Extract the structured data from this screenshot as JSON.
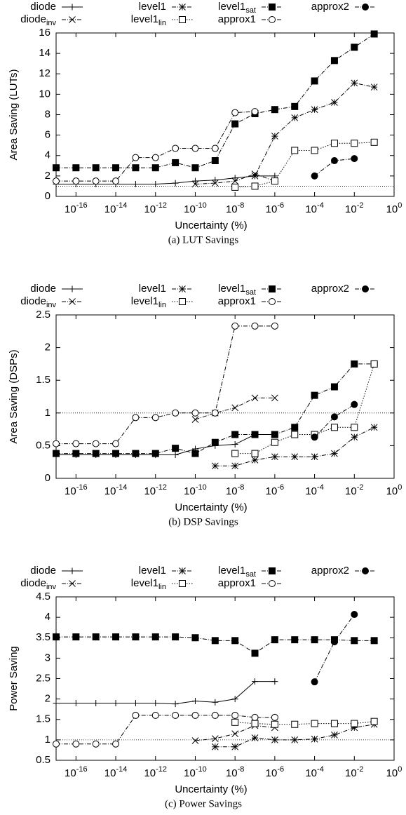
{
  "chart_data": [
    {
      "type": "line",
      "caption": "(a) LUT Savings",
      "x_label": "Uncertainty (%)",
      "y_label": "Area Saving (LUTs)",
      "log_x": true,
      "xlim": [
        1e-17,
        1
      ],
      "xticks": [
        {
          "value": 1e-16,
          "label": "10",
          "exponent": "-16"
        },
        {
          "value": 1e-14,
          "label": "10",
          "exponent": "-14"
        },
        {
          "value": 1e-12,
          "label": "10",
          "exponent": "-12"
        },
        {
          "value": 1e-10,
          "label": "10",
          "exponent": "-10"
        },
        {
          "value": 1e-08,
          "label": "10",
          "exponent": "-8"
        },
        {
          "value": 1e-06,
          "label": "10",
          "exponent": "-6"
        },
        {
          "value": 0.0001,
          "label": "10",
          "exponent": "-4"
        },
        {
          "value": 0.01,
          "label": "10",
          "exponent": "-2"
        },
        {
          "value": 1,
          "label": "10",
          "exponent": "0"
        }
      ],
      "ylim": [
        0,
        16
      ],
      "yticks": [
        0,
        2,
        4,
        6,
        8,
        10,
        12,
        14,
        16
      ],
      "hline": 1,
      "series": [
        {
          "name": "diode",
          "marker": "plus",
          "dash": "solid",
          "color": "#000000",
          "x": [
            1e-17,
            1e-16,
            1e-15,
            1e-14,
            1e-13,
            1e-12,
            1e-11,
            1e-10,
            1e-09,
            1e-08,
            1e-07,
            1e-06
          ],
          "values": [
            1.2,
            1.2,
            1.2,
            1.2,
            1.2,
            1.2,
            1.3,
            1.5,
            1.6,
            1.8,
            2.0,
            2.0
          ]
        },
        {
          "name": "diode",
          "subscript": "inv",
          "marker": "x",
          "dash": "dashdot",
          "color": "#000000",
          "x": [
            1e-10,
            1e-09,
            1e-08,
            1e-07,
            1e-06
          ],
          "values": [
            1.2,
            1.3,
            1.5,
            2.2,
            1.5
          ]
        },
        {
          "name": "level1",
          "marker": "star",
          "dash": "dashdot",
          "color": "#000000",
          "x": [
            1e-07,
            1e-06,
            1e-05,
            0.0001,
            0.001,
            0.01,
            0.1
          ],
          "values": [
            2.0,
            5.9,
            7.7,
            8.5,
            9.2,
            11.1,
            10.7
          ]
        },
        {
          "name": "level1",
          "subscript": "sat",
          "marker": "square",
          "dash": "dashdot",
          "color": "#000000",
          "x": [
            1e-17,
            1e-16,
            1e-15,
            1e-14,
            1e-13,
            1e-12,
            1e-11,
            1e-10,
            1e-09,
            1e-08,
            1e-07,
            1e-06,
            1e-05,
            0.0001,
            0.001,
            0.01,
            0.1
          ],
          "values": [
            2.8,
            2.8,
            2.8,
            2.8,
            2.8,
            2.8,
            3.3,
            2.8,
            3.5,
            7.1,
            8.1,
            8.5,
            8.8,
            11.3,
            13.3,
            14.6,
            15.9
          ]
        },
        {
          "name": "level1",
          "subscript": "lin",
          "marker": "square-open",
          "dash": "dotted",
          "color": "#000000",
          "x": [
            1e-08,
            1e-07,
            1e-06,
            1e-05,
            0.0001,
            0.001,
            0.01,
            0.1
          ],
          "values": [
            0.9,
            1.0,
            1.5,
            4.5,
            4.5,
            5.2,
            5.2,
            5.3
          ]
        },
        {
          "name": "approx1",
          "marker": "circle-open",
          "dash": "dashdot",
          "color": "#000000",
          "x": [
            1e-17,
            1e-16,
            1e-15,
            1e-14,
            1e-13,
            1e-12,
            1e-11,
            1e-10,
            1e-09,
            1e-08,
            1e-07
          ],
          "values": [
            1.5,
            1.5,
            1.5,
            1.5,
            3.8,
            3.8,
            4.7,
            4.7,
            4.7,
            8.2,
            8.3
          ]
        },
        {
          "name": "approx2",
          "marker": "circle",
          "dash": "dashdot",
          "color": "#000000",
          "x": [
            0.0001,
            0.001,
            0.01
          ],
          "values": [
            2.0,
            3.5,
            3.7
          ]
        }
      ]
    },
    {
      "type": "line",
      "caption": "(b) DSP Savings",
      "x_label": "Uncertainty (%)",
      "y_label": "Area Saving (DSPs)",
      "log_x": true,
      "xlim": [
        1e-17,
        1
      ],
      "xticks": [
        {
          "value": 1e-16,
          "label": "10",
          "exponent": "-16"
        },
        {
          "value": 1e-14,
          "label": "10",
          "exponent": "-14"
        },
        {
          "value": 1e-12,
          "label": "10",
          "exponent": "-12"
        },
        {
          "value": 1e-10,
          "label": "10",
          "exponent": "-10"
        },
        {
          "value": 1e-08,
          "label": "10",
          "exponent": "-8"
        },
        {
          "value": 1e-06,
          "label": "10",
          "exponent": "-6"
        },
        {
          "value": 0.0001,
          "label": "10",
          "exponent": "-4"
        },
        {
          "value": 0.01,
          "label": "10",
          "exponent": "-2"
        },
        {
          "value": 1,
          "label": "10",
          "exponent": "0"
        }
      ],
      "ylim": [
        0,
        2.5
      ],
      "yticks": [
        0,
        0.5,
        1,
        1.5,
        2,
        2.5
      ],
      "hline": 1,
      "series": [
        {
          "name": "diode",
          "marker": "plus",
          "dash": "solid",
          "color": "#000000",
          "x": [
            1e-17,
            1e-16,
            1e-15,
            1e-14,
            1e-13,
            1e-12,
            1e-11,
            1e-10,
            1e-09,
            1e-08,
            1e-07,
            1e-06
          ],
          "values": [
            0.36,
            0.36,
            0.36,
            0.36,
            0.36,
            0.36,
            0.36,
            0.45,
            0.5,
            0.52,
            0.67,
            0.67
          ]
        },
        {
          "name": "diode",
          "subscript": "inv",
          "marker": "x",
          "dash": "dashdot",
          "color": "#000000",
          "x": [
            1e-10,
            1e-09,
            1e-08,
            1e-07,
            1e-06
          ],
          "values": [
            0.9,
            1.0,
            1.08,
            1.23,
            1.23
          ]
        },
        {
          "name": "level1",
          "marker": "star",
          "dash": "dashdot",
          "color": "#000000",
          "x": [
            1e-09,
            1e-08,
            1e-07,
            1e-06,
            1e-05,
            0.0001,
            0.001,
            0.01,
            0.1
          ],
          "values": [
            0.19,
            0.19,
            0.28,
            0.33,
            0.33,
            0.33,
            0.38,
            0.63,
            0.78
          ]
        },
        {
          "name": "level1",
          "subscript": "sat",
          "marker": "square",
          "dash": "dashdot",
          "color": "#000000",
          "x": [
            1e-17,
            1e-16,
            1e-15,
            1e-14,
            1e-13,
            1e-12,
            1e-11,
            1e-10,
            1e-09,
            1e-08,
            1e-07,
            1e-06,
            1e-05,
            0.0001,
            0.001,
            0.01,
            0.1
          ],
          "values": [
            0.38,
            0.38,
            0.38,
            0.38,
            0.38,
            0.38,
            0.46,
            0.38,
            0.55,
            0.67,
            0.67,
            0.67,
            0.78,
            1.27,
            1.4,
            1.75,
            1.75
          ]
        },
        {
          "name": "level1",
          "subscript": "lin",
          "marker": "square-open",
          "dash": "dotted",
          "color": "#000000",
          "x": [
            1e-08,
            1e-07,
            1e-06,
            1e-05,
            0.0001,
            0.001,
            0.01,
            0.1
          ],
          "values": [
            0.38,
            0.38,
            0.55,
            0.67,
            0.67,
            0.78,
            0.78,
            1.75
          ]
        },
        {
          "name": "approx1",
          "marker": "circle-open",
          "dash": "dashdot",
          "color": "#000000",
          "x": [
            1e-17,
            1e-16,
            1e-15,
            1e-14,
            1e-13,
            1e-12,
            1e-11,
            1e-10,
            1e-09,
            1e-08,
            1e-07,
            1e-06
          ],
          "values": [
            0.53,
            0.53,
            0.53,
            0.53,
            0.93,
            0.93,
            1.0,
            1.0,
            1.0,
            2.33,
            2.33,
            2.33
          ]
        },
        {
          "name": "approx2",
          "marker": "circle",
          "dash": "dashdot",
          "color": "#000000",
          "x": [
            0.0001,
            0.001,
            0.01
          ],
          "values": [
            0.63,
            0.94,
            1.13
          ]
        }
      ]
    },
    {
      "type": "line",
      "caption": "(c) Power Savings",
      "x_label": "Uncertainty (%)",
      "y_label": "Power Saving",
      "log_x": true,
      "xlim": [
        1e-17,
        1
      ],
      "xticks": [
        {
          "value": 1e-16,
          "label": "10",
          "exponent": "-16"
        },
        {
          "value": 1e-14,
          "label": "10",
          "exponent": "-14"
        },
        {
          "value": 1e-12,
          "label": "10",
          "exponent": "-12"
        },
        {
          "value": 1e-10,
          "label": "10",
          "exponent": "-10"
        },
        {
          "value": 1e-08,
          "label": "10",
          "exponent": "-8"
        },
        {
          "value": 1e-06,
          "label": "10",
          "exponent": "-6"
        },
        {
          "value": 0.0001,
          "label": "10",
          "exponent": "-4"
        },
        {
          "value": 0.01,
          "label": "10",
          "exponent": "-2"
        },
        {
          "value": 1,
          "label": "10",
          "exponent": "0"
        }
      ],
      "ylim": [
        0.5,
        4.5
      ],
      "yticks": [
        0.5,
        1,
        1.5,
        2,
        2.5,
        3,
        3.5,
        4,
        4.5
      ],
      "hline": 1,
      "series": [
        {
          "name": "diode",
          "marker": "plus",
          "dash": "solid",
          "color": "#000000",
          "x": [
            1e-17,
            1e-16,
            1e-15,
            1e-14,
            1e-13,
            1e-12,
            1e-11,
            1e-10,
            1e-09,
            1e-08,
            1e-07,
            1e-06
          ],
          "values": [
            1.9,
            1.9,
            1.9,
            1.9,
            1.9,
            1.9,
            1.88,
            1.95,
            1.92,
            2.0,
            2.43,
            2.43
          ]
        },
        {
          "name": "diode",
          "subscript": "inv",
          "marker": "x",
          "dash": "dashdot",
          "color": "#000000",
          "x": [
            1e-10,
            1e-09,
            1e-08,
            1e-07,
            1e-06
          ],
          "values": [
            0.98,
            1.03,
            1.15,
            1.35,
            1.3
          ]
        },
        {
          "name": "level1",
          "marker": "star",
          "dash": "dashdot",
          "color": "#000000",
          "x": [
            1e-09,
            1e-08,
            1e-07,
            1e-06,
            1e-05,
            0.0001,
            0.001,
            0.01,
            0.1
          ],
          "values": [
            0.83,
            0.83,
            1.05,
            1.0,
            1.0,
            1.02,
            1.12,
            1.3,
            1.38
          ]
        },
        {
          "name": "level1",
          "subscript": "sat",
          "marker": "square",
          "dash": "dashdot",
          "color": "#000000",
          "x": [
            1e-17,
            1e-16,
            1e-15,
            1e-14,
            1e-13,
            1e-12,
            1e-11,
            1e-10,
            1e-09,
            1e-08,
            1e-07,
            1e-06,
            1e-05,
            0.0001,
            0.001,
            0.01,
            0.1
          ],
          "values": [
            3.52,
            3.52,
            3.52,
            3.52,
            3.52,
            3.52,
            3.52,
            3.5,
            3.43,
            3.43,
            3.12,
            3.45,
            3.45,
            3.45,
            3.45,
            3.43,
            3.43
          ]
        },
        {
          "name": "level1",
          "subscript": "lin",
          "marker": "square-open",
          "dash": "dotted",
          "color": "#000000",
          "x": [
            1e-08,
            1e-07,
            1e-06,
            1e-05,
            0.0001,
            0.001,
            0.01,
            0.1
          ],
          "values": [
            1.43,
            1.4,
            1.38,
            1.38,
            1.4,
            1.4,
            1.4,
            1.45
          ]
        },
        {
          "name": "approx1",
          "marker": "circle-open",
          "dash": "dashdot",
          "color": "#000000",
          "x": [
            1e-17,
            1e-16,
            1e-15,
            1e-14,
            1e-13,
            1e-12,
            1e-11,
            1e-10,
            1e-09,
            1e-08,
            1e-07,
            1e-06
          ],
          "values": [
            0.9,
            0.9,
            0.9,
            0.9,
            1.6,
            1.6,
            1.6,
            1.6,
            1.6,
            1.6,
            1.55,
            1.55
          ]
        },
        {
          "name": "approx2",
          "marker": "circle",
          "dash": "dashdot",
          "color": "#000000",
          "x": [
            0.0001,
            0.001,
            0.01
          ],
          "values": [
            2.42,
            3.4,
            4.07
          ]
        }
      ]
    }
  ]
}
